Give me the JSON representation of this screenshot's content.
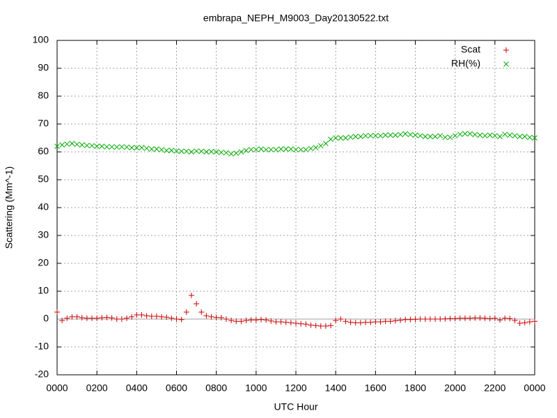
{
  "chart_data": {
    "type": "scatter",
    "title": "embrapa_NEPH_M9003_Day20130522.txt",
    "xlabel": "UTC Hour",
    "ylabel": "Scattering (Mm^-1)",
    "xlim": [
      0,
      24
    ],
    "xticks": [
      {
        "value": 0,
        "label": "0000"
      },
      {
        "value": 2,
        "label": "0200"
      },
      {
        "value": 4,
        "label": "0400"
      },
      {
        "value": 6,
        "label": "0600"
      },
      {
        "value": 8,
        "label": "0800"
      },
      {
        "value": 10,
        "label": "1000"
      },
      {
        "value": 12,
        "label": "1200"
      },
      {
        "value": 14,
        "label": "1400"
      },
      {
        "value": 16,
        "label": "1600"
      },
      {
        "value": 18,
        "label": "1800"
      },
      {
        "value": 20,
        "label": "2000"
      },
      {
        "value": 22,
        "label": "2200"
      },
      {
        "value": 24,
        "label": "0000"
      }
    ],
    "ylim": [
      -20,
      100
    ],
    "yticks": [
      -20,
      -10,
      0,
      10,
      20,
      30,
      40,
      50,
      60,
      70,
      80,
      90,
      100
    ],
    "grid": true,
    "legend": "upper right",
    "x": [
      0,
      0.25,
      0.5,
      0.75,
      1,
      1.25,
      1.5,
      1.75,
      2,
      2.25,
      2.5,
      2.75,
      3,
      3.25,
      3.5,
      3.75,
      4,
      4.25,
      4.5,
      4.75,
      5,
      5.25,
      5.5,
      5.75,
      6,
      6.25,
      6.5,
      6.75,
      7,
      7.25,
      7.5,
      7.75,
      8,
      8.25,
      8.5,
      8.75,
      9,
      9.25,
      9.5,
      9.75,
      10,
      10.25,
      10.5,
      10.75,
      11,
      11.25,
      11.5,
      11.75,
      12,
      12.25,
      12.5,
      12.75,
      13,
      13.25,
      13.5,
      13.75,
      14,
      14.25,
      14.5,
      14.75,
      15,
      15.25,
      15.5,
      15.75,
      16,
      16.25,
      16.5,
      16.75,
      17,
      17.25,
      17.5,
      17.75,
      18,
      18.25,
      18.5,
      18.75,
      19,
      19.25,
      19.5,
      19.75,
      20,
      20.25,
      20.5,
      20.75,
      21,
      21.25,
      21.5,
      21.75,
      22,
      22.25,
      22.5,
      22.75,
      23,
      23.25,
      23.5,
      23.75,
      24
    ],
    "series": [
      {
        "name": "Scat",
        "color": "#cc0000",
        "marker": "+",
        "values": [
          2.5,
          -0.5,
          0.3,
          0.8,
          0.8,
          0.5,
          0.3,
          0.3,
          0.3,
          0.5,
          0.6,
          0.4,
          0,
          0,
          0.3,
          0.8,
          1.5,
          1.5,
          1.2,
          1,
          1,
          0.8,
          0.7,
          0.3,
          0,
          -0.2,
          2.5,
          8.5,
          5.5,
          2.5,
          1.2,
          0.8,
          0.6,
          0.5,
          0,
          -0.5,
          -0.8,
          -0.8,
          -0.5,
          -0.3,
          -0.3,
          -0.2,
          -0.3,
          -0.7,
          -1,
          -1,
          -1.2,
          -1.3,
          -1.5,
          -1.7,
          -1.8,
          -2.2,
          -2.3,
          -2.5,
          -2.5,
          -2.3,
          -0.5,
          0,
          -0.8,
          -1.2,
          -1.3,
          -1.3,
          -1.2,
          -1.2,
          -1,
          -1,
          -0.8,
          -0.8,
          -0.6,
          -0.4,
          -0.2,
          -0.2,
          -0.1,
          0,
          0,
          0,
          0,
          0,
          0.1,
          0.2,
          0.2,
          0.3,
          0.3,
          0.3,
          0.4,
          0.4,
          0.3,
          0.2,
          0.3,
          -0.3,
          0.3,
          0.2,
          -0.5,
          -1.5,
          -1.3,
          -1,
          -0.8
        ]
      },
      {
        "name": "RH(%)",
        "color": "#00aa00",
        "marker": "x",
        "values": [
          62,
          62.5,
          62.8,
          63,
          62.7,
          62.5,
          62.3,
          62.2,
          62,
          62,
          61.8,
          61.8,
          61.7,
          61.8,
          61.7,
          61.5,
          61.5,
          61.5,
          61.3,
          61,
          61,
          60.8,
          60.5,
          60.5,
          60.3,
          60.2,
          60.2,
          60,
          60.3,
          60.2,
          60,
          60.1,
          60,
          59.8,
          59.7,
          59.3,
          59.5,
          60,
          60.5,
          60.8,
          60.8,
          61,
          60.8,
          60.8,
          60.8,
          61,
          61,
          61,
          60.8,
          60.8,
          60.8,
          61.2,
          61.5,
          62.2,
          63,
          64.5,
          65,
          65,
          65,
          65.3,
          65.5,
          65.5,
          65.8,
          65.8,
          65.8,
          65.8,
          66,
          66,
          66,
          66.2,
          66.5,
          66.2,
          66,
          65.8,
          65.5,
          65.5,
          65.5,
          65.8,
          65.2,
          65.2,
          65.8,
          66.3,
          66.5,
          66.5,
          66.2,
          66,
          65.8,
          66,
          65.8,
          65.5,
          66.3,
          66,
          65.8,
          65.5,
          65.5,
          65.2,
          65
        ]
      }
    ]
  }
}
